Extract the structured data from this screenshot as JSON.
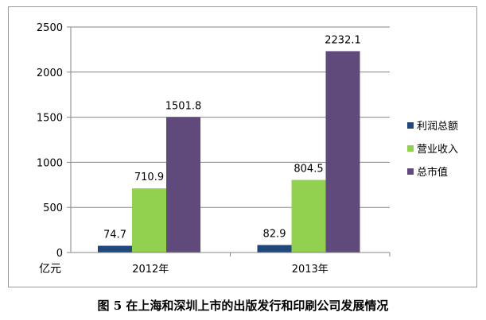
{
  "chart_data": {
    "type": "bar",
    "categories": [
      "2012年",
      "2013年"
    ],
    "series": [
      {
        "name": "利润总额",
        "values": [
          74.7,
          82.9
        ],
        "labels": [
          "74.7",
          "82.9"
        ],
        "color": "#1f497d"
      },
      {
        "name": "营业收入",
        "values": [
          710.9,
          804.5
        ],
        "labels": [
          "710.9",
          "804.5"
        ],
        "color": "#92d050"
      },
      {
        "name": "总市值",
        "values": [
          1501.8,
          2232.1
        ],
        "labels": [
          "1501.8",
          "2232.1"
        ],
        "color": "#604a7b"
      }
    ],
    "ylim": [
      0,
      2500
    ],
    "yticks": [
      "0",
      "500",
      "1000",
      "1500",
      "2000",
      "2500"
    ],
    "ytick_values": [
      0,
      500,
      1000,
      1500,
      2000,
      2500
    ],
    "unit_label": "亿元",
    "grid": true,
    "legend_position": "right"
  },
  "caption": "图 5   在上海和深圳上市的出版发行和印刷公司发展情况"
}
